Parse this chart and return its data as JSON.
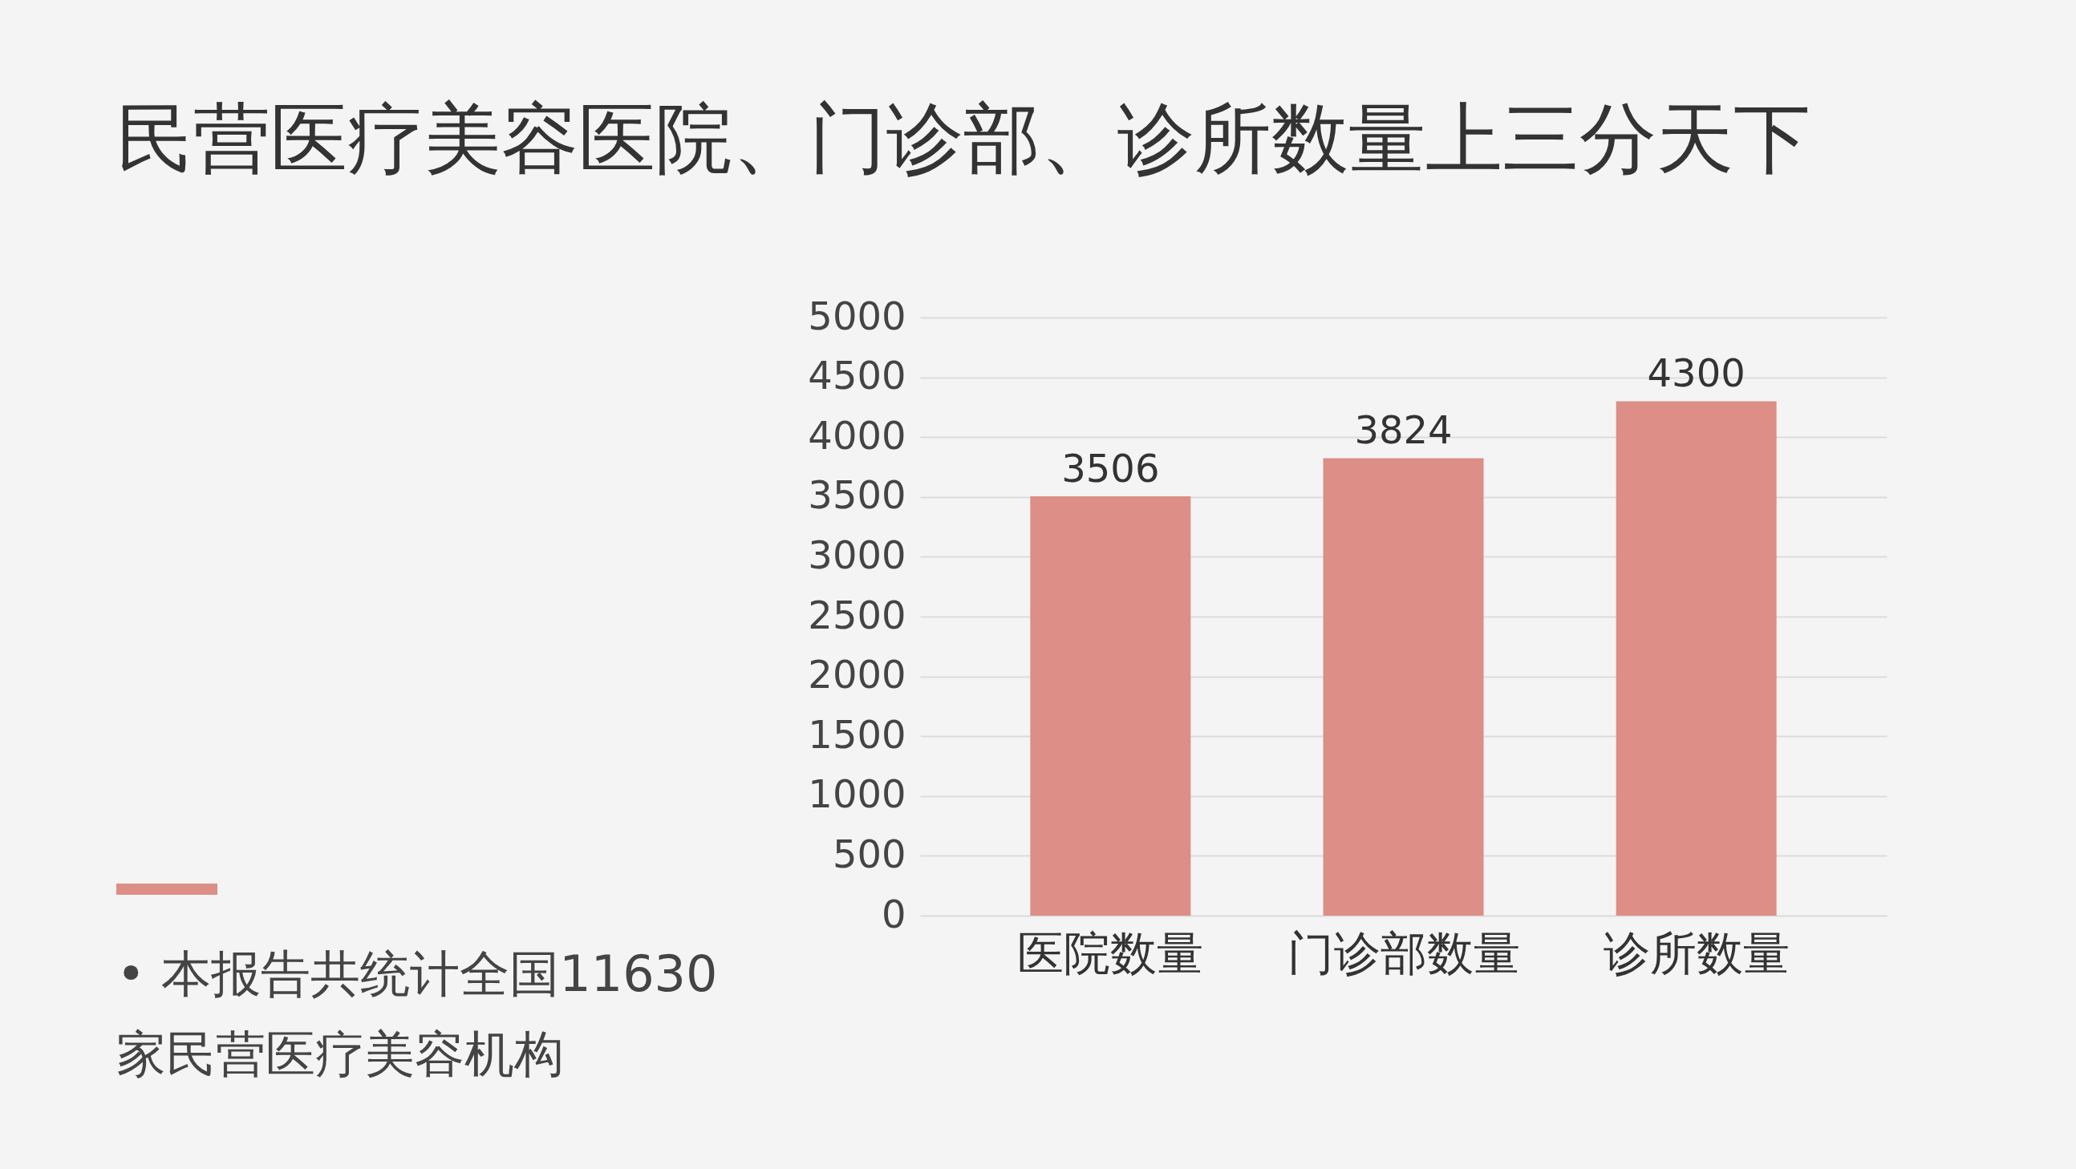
{
  "chart_data": {
    "type": "bar",
    "title": "民营医疗美容医院、门诊部、诊所数量上三分天下",
    "categories": [
      "医院数量",
      "门诊部数量",
      "诊所数量"
    ],
    "values": [
      3506,
      3824,
      4300
    ],
    "color": "#dc8e87",
    "ylim": [
      0,
      5000
    ],
    "yticks": [
      0,
      500,
      1000,
      1500,
      2000,
      2500,
      3000,
      3500,
      4000,
      4500,
      5000
    ],
    "grid": "y",
    "data_labels": true,
    "annotations": [
      "• 本报告共统计全国11630家民营医疗美容机构"
    ]
  }
}
